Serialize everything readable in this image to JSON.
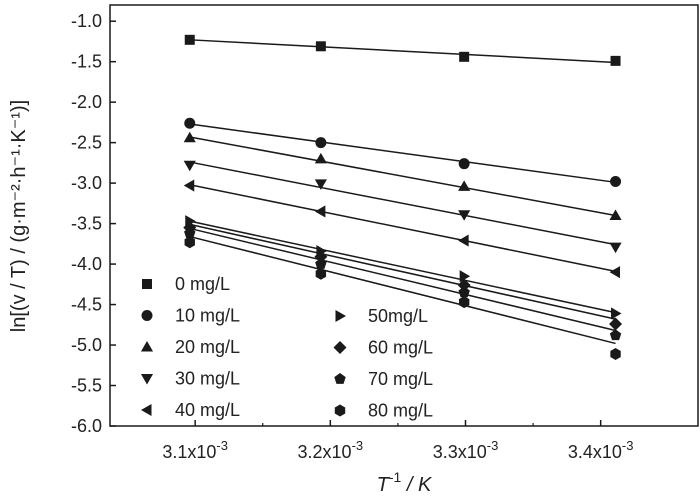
{
  "chart_data": {
    "type": "scatter",
    "title": "",
    "xlabel": {
      "base": "T",
      "sup": "-1",
      "rest": " / K"
    },
    "ylabel": "ln[(v / T) / (g·m⁻²·h⁻¹·K⁻¹)]",
    "xlim": [
      0.003037,
      0.003472
    ],
    "ylim": [
      -6.0,
      -0.8
    ],
    "x_ticks": [
      {
        "value": 0.0031,
        "mantissa": "3.1x10",
        "exp": "-3"
      },
      {
        "value": 0.0032,
        "mantissa": "3.2x10",
        "exp": "-3"
      },
      {
        "value": 0.0033,
        "mantissa": "3.3x10",
        "exp": "-3"
      },
      {
        "value": 0.0034,
        "mantissa": "3.4x10",
        "exp": "-3"
      }
    ],
    "y_ticks": [
      {
        "value": -1.0,
        "label": "-1.0"
      },
      {
        "value": -1.5,
        "label": "-1.5"
      },
      {
        "value": -2.0,
        "label": "-2.0"
      },
      {
        "value": -2.5,
        "label": "-2.5"
      },
      {
        "value": -3.0,
        "label": "-3.0"
      },
      {
        "value": -3.5,
        "label": "-3.5"
      },
      {
        "value": -4.0,
        "label": "-4.0"
      },
      {
        "value": -4.5,
        "label": "-4.5"
      },
      {
        "value": -5.0,
        "label": "-5.0"
      },
      {
        "value": -5.5,
        "label": "-5.5"
      },
      {
        "value": -6.0,
        "label": "-6.0"
      }
    ],
    "x": [
      0.003096,
      0.003193,
      0.003299,
      0.003411
    ],
    "series": [
      {
        "name": "0 mg/L",
        "marker": "square",
        "values": [
          -1.23,
          -1.31,
          -1.44,
          -1.49
        ],
        "fit": [
          -1.23,
          -1.31,
          -1.41,
          -1.51
        ]
      },
      {
        "name": "10 mg/L",
        "marker": "circle",
        "values": [
          -2.26,
          -2.5,
          -2.76,
          -2.98
        ],
        "fit": [
          -2.27,
          -2.5,
          -2.74,
          -2.99
        ]
      },
      {
        "name": "20 mg/L",
        "marker": "triangle-up",
        "values": [
          -2.44,
          -2.7,
          -3.04,
          -3.4
        ],
        "fit": [
          -2.43,
          -2.73,
          -3.06,
          -3.4
        ]
      },
      {
        "name": "30 mg/L",
        "marker": "triangle-down",
        "values": [
          -2.78,
          -3.01,
          -3.39,
          -3.79
        ],
        "fit": [
          -2.74,
          -3.05,
          -3.4,
          -3.76
        ]
      },
      {
        "name": "40 mg/L",
        "marker": "triangle-left",
        "values": [
          -3.03,
          -3.35,
          -3.71,
          -4.1
        ],
        "fit": [
          -3.02,
          -3.35,
          -3.71,
          -4.09
        ]
      },
      {
        "name": "50mg/L",
        "marker": "triangle-right",
        "values": [
          -3.47,
          -3.84,
          -4.15,
          -4.61
        ],
        "fit": [
          -3.47,
          -3.81,
          -4.19,
          -4.6
        ]
      },
      {
        "name": "60 mg/L",
        "marker": "diamond",
        "values": [
          -3.55,
          -3.91,
          -4.26,
          -4.74
        ],
        "fit": [
          -3.51,
          -3.87,
          -4.27,
          -4.68
        ]
      },
      {
        "name": "70 mg/L",
        "marker": "pentagon",
        "values": [
          -3.62,
          -4.0,
          -4.35,
          -4.88
        ],
        "fit": [
          -3.56,
          -3.95,
          -4.37,
          -4.82
        ]
      },
      {
        "name": "80 mg/L",
        "marker": "hexagon",
        "values": [
          -3.73,
          -4.12,
          -4.47,
          -5.11
        ],
        "fit": [
          -3.66,
          -4.07,
          -4.51,
          -4.98
        ]
      }
    ],
    "legend_placement": "bottom-left, two columns",
    "colors": {
      "marker": "#1a1a1a",
      "line": "#1a1a1a",
      "axis": "#1a1a1a",
      "background": "#ffffff"
    }
  }
}
